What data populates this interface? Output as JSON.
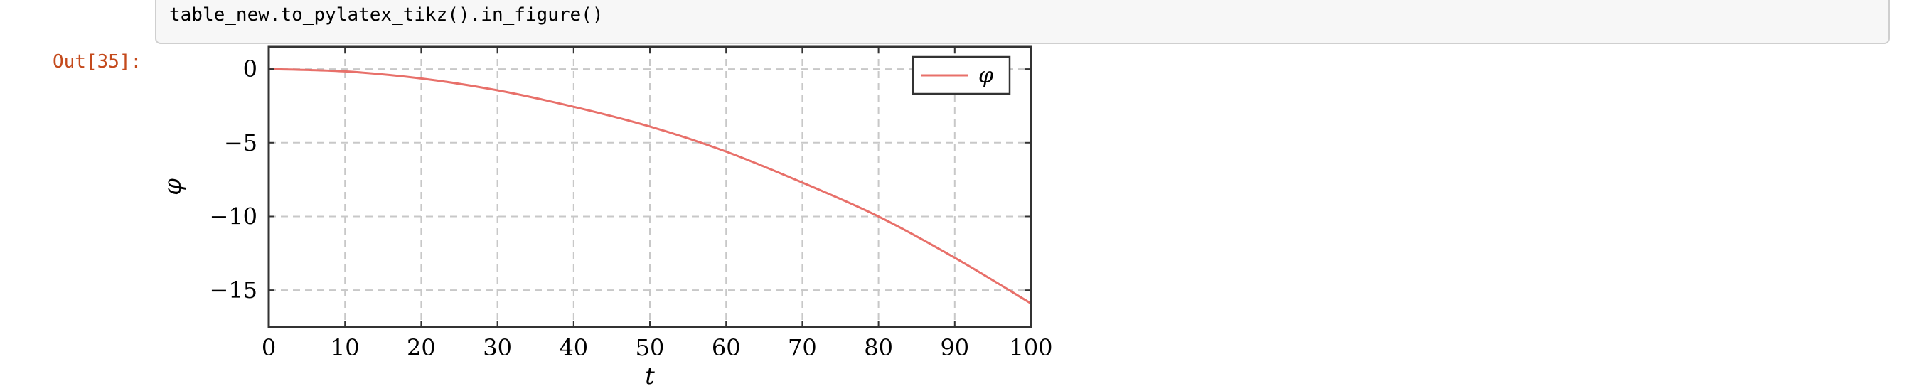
{
  "code_cell": {
    "code": "table_new.to_pylatex_tikz().in_figure()"
  },
  "output": {
    "prompt": "Out[35]:"
  },
  "colors": {
    "series": "#e8706a",
    "grid": "#c8c8c8",
    "axis": "#333333",
    "prompt": "#c44a1c"
  },
  "chart_data": {
    "type": "line",
    "xlabel": "t",
    "ylabel": "φ",
    "xlim": [
      0,
      100
    ],
    "ylim": [
      -17.5,
      1.5
    ],
    "xticks": [
      0,
      10,
      20,
      30,
      40,
      50,
      60,
      70,
      80,
      90,
      100
    ],
    "yticks": [
      0,
      -5,
      -10,
      -15
    ],
    "ytick_labels": [
      "0",
      "−5",
      "−10",
      "−15"
    ],
    "grid": true,
    "legend_position": "top-right",
    "series": [
      {
        "name": "φ",
        "x": [
          0,
          10,
          20,
          30,
          40,
          50,
          60,
          70,
          80,
          90,
          100
        ],
        "y": [
          0,
          -0.16,
          -0.64,
          -1.44,
          -2.56,
          -3.9,
          -5.6,
          -7.7,
          -10.0,
          -12.8,
          -15.9
        ]
      }
    ]
  }
}
